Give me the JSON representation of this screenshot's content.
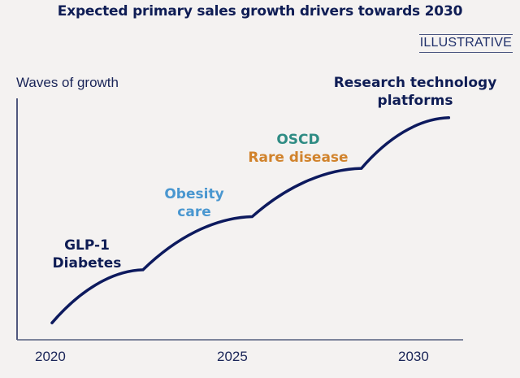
{
  "chart_data": {
    "type": "line",
    "title": "Expected primary sales growth drivers towards 2030",
    "badge": "ILLUSTRATIVE",
    "ylabel": "Waves of growth",
    "xlabel": "",
    "x_ticks": [
      "2020",
      "2025",
      "2030"
    ],
    "xlim": [
      2019.9,
      2031
    ],
    "grid": false,
    "series": [
      {
        "name": "Waves of growth",
        "color": "#0d1a5e",
        "description": "Four successive concave growth waves (illustrative, no numeric y-scale)",
        "x": [
          2020.0,
          2022.5,
          2025.5,
          2028.5,
          2030.9
        ],
        "y_relative": [
          0.07,
          0.29,
          0.51,
          0.71,
          0.92
        ]
      }
    ],
    "annotations": [
      {
        "lines": [
          "GLP-1",
          "Diabetes"
        ],
        "colors": [
          "#0f1d55",
          "#0f1d55"
        ],
        "x": 2021.1
      },
      {
        "lines": [
          "Obesity",
          "care"
        ],
        "colors": [
          "#4a97d0",
          "#4a97d0"
        ],
        "x": 2024.2
      },
      {
        "lines": [
          "OSCD",
          "Rare disease"
        ],
        "colors": [
          "#2f8c84",
          "#d1832c"
        ],
        "x": 2027.3
      },
      {
        "lines": [
          "Research technology",
          "platforms"
        ],
        "colors": [
          "#0f1d55",
          "#0f1d55"
        ],
        "x": 2030.0
      }
    ]
  }
}
